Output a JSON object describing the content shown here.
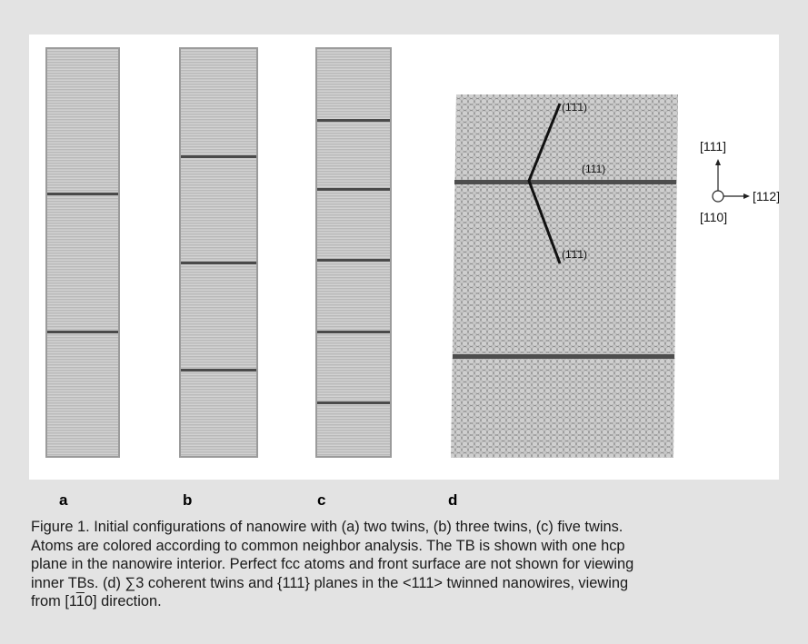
{
  "panel_labels": {
    "a": "a",
    "b": "b",
    "c": "c",
    "d": "d"
  },
  "panel_d": {
    "plane_top": "(1̄1̄1)",
    "plane_mid": "(111)",
    "plane_bottom": "(1̄1̄1)",
    "axis_up": "[111]",
    "axis_right": "[112]",
    "axis_center": "[110]"
  },
  "wires": {
    "a_twin_fractions": [
      0.355,
      0.695
    ],
    "b_twin_fractions": [
      0.265,
      0.525,
      0.79
    ],
    "c_twin_fractions": [
      0.175,
      0.345,
      0.52,
      0.695,
      0.87
    ]
  },
  "caption": {
    "line1": "Figure 1. Initial configurations of nanowire with (a) two twins, (b) three twins, (c) five twins.",
    "line2": "Atoms are colored according to common neighbor analysis. The TB is shown with one hcp",
    "line3": "plane in the nanowire interior. Perfect fcc atoms and front surface are not shown for viewing",
    "line4": "inner TBs. (d) ∑3 coherent twins and {111} planes in the <111> twinned nanowires, viewing",
    "line5_pre": "from [1",
    "line5_bar": "1",
    "line5_post": "0]  direction."
  }
}
